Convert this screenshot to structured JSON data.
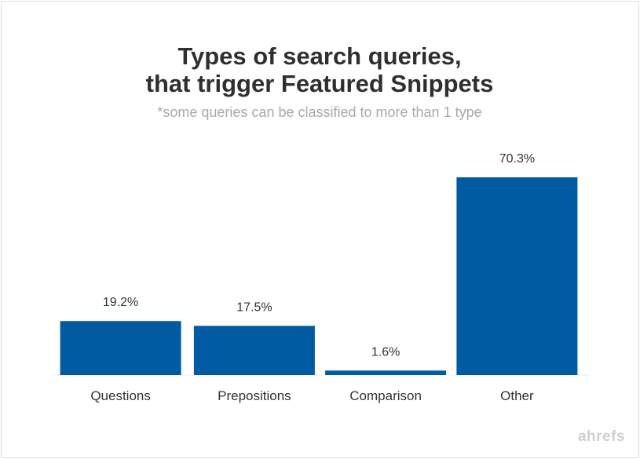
{
  "chart_data": {
    "type": "bar",
    "title_lines": [
      "Types of search queries,",
      "that trigger Featured Snippets"
    ],
    "subtitle": "*some queries can be classified to more than 1 type",
    "categories": [
      "Questions",
      "Prepositions",
      "Comparison",
      "Other"
    ],
    "values": [
      19.2,
      17.5,
      1.6,
      70.3
    ],
    "value_labels": [
      "19.2%",
      "17.5%",
      "1.6%",
      "70.3%"
    ],
    "ylim": [
      0,
      70.3
    ],
    "xlabel": "",
    "ylabel": "",
    "grid": false,
    "legend": "none",
    "bar_color": "#015ba3"
  },
  "brand": {
    "logo_text": "ahrefs"
  }
}
